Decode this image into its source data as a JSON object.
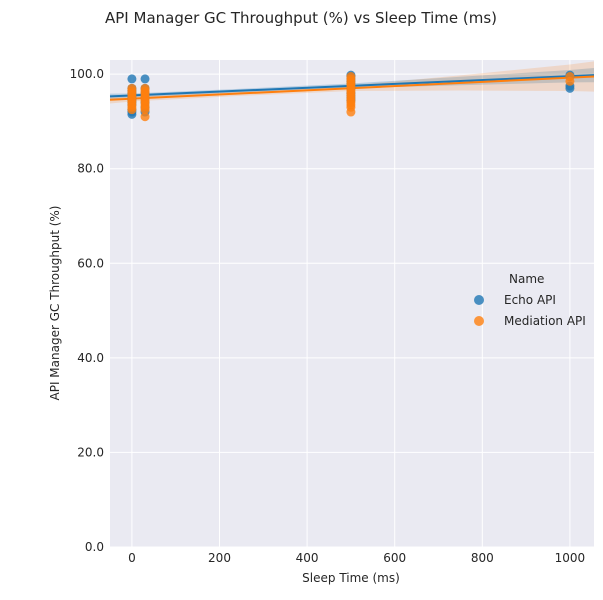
{
  "chart_data": {
    "type": "scatter",
    "title": "API Manager GC Throughput (%) vs Sleep Time (ms)",
    "xlabel": "Sleep Time (ms)",
    "ylabel": "API Manager GC Throughput (%)",
    "xlim": [
      -50,
      1055
    ],
    "ylim": [
      0,
      103
    ],
    "xticks": [
      0,
      200,
      400,
      600,
      800,
      1000
    ],
    "yticks": [
      0,
      20,
      40,
      60,
      80,
      100
    ],
    "ytick_labels": [
      "0.0",
      "20.0",
      "40.0",
      "60.0",
      "80.0",
      "100.0"
    ],
    "grid": true,
    "legend": {
      "title": "Name",
      "position": "right"
    },
    "series": [
      {
        "name": "Echo API",
        "color": "#1f77b4",
        "points": [
          [
            0,
            99
          ],
          [
            0,
            97
          ],
          [
            0,
            96.5
          ],
          [
            0,
            96
          ],
          [
            0,
            95.5
          ],
          [
            0,
            95
          ],
          [
            0,
            94.5
          ],
          [
            0,
            94
          ],
          [
            0,
            93.5
          ],
          [
            0,
            92.5
          ],
          [
            0,
            92
          ],
          [
            0,
            91.5
          ],
          [
            30,
            99
          ],
          [
            30,
            97
          ],
          [
            30,
            96
          ],
          [
            30,
            95
          ],
          [
            30,
            94
          ],
          [
            30,
            93
          ],
          [
            30,
            92
          ],
          [
            500,
            99.8
          ],
          [
            500,
            99.5
          ],
          [
            500,
            99
          ],
          [
            500,
            98.5
          ],
          [
            500,
            98
          ],
          [
            500,
            97
          ],
          [
            500,
            96
          ],
          [
            500,
            95.5
          ],
          [
            500,
            95
          ],
          [
            500,
            94.5
          ],
          [
            1000,
            99.8
          ],
          [
            1000,
            99.5
          ],
          [
            1000,
            97.5
          ],
          [
            1000,
            97
          ]
        ],
        "fit": {
          "x": [
            -50,
            1055
          ],
          "y": [
            95.3,
            99.8
          ]
        }
      },
      {
        "name": "Mediation API",
        "color": "#ff7f0e",
        "points": [
          [
            0,
            97
          ],
          [
            0,
            96.5
          ],
          [
            0,
            96
          ],
          [
            0,
            95.5
          ],
          [
            0,
            95
          ],
          [
            0,
            94.5
          ],
          [
            0,
            94
          ],
          [
            0,
            93.5
          ],
          [
            0,
            93
          ],
          [
            0,
            92.5
          ],
          [
            30,
            97
          ],
          [
            30,
            96.5
          ],
          [
            30,
            96
          ],
          [
            30,
            95.5
          ],
          [
            30,
            95
          ],
          [
            30,
            94.5
          ],
          [
            30,
            94
          ],
          [
            30,
            93.5
          ],
          [
            30,
            93
          ],
          [
            30,
            92.5
          ],
          [
            30,
            91
          ],
          [
            500,
            99.5
          ],
          [
            500,
            99
          ],
          [
            500,
            98.5
          ],
          [
            500,
            98
          ],
          [
            500,
            97.5
          ],
          [
            500,
            97
          ],
          [
            500,
            96.5
          ],
          [
            500,
            96
          ],
          [
            500,
            95.5
          ],
          [
            500,
            95
          ],
          [
            500,
            94.5
          ],
          [
            500,
            94
          ],
          [
            500,
            93.5
          ],
          [
            500,
            93
          ],
          [
            500,
            92
          ],
          [
            1000,
            99.5
          ],
          [
            1000,
            98.5
          ]
        ],
        "fit": {
          "x": [
            -50,
            1055
          ],
          "y": [
            94.6,
            99.5
          ]
        }
      }
    ]
  }
}
